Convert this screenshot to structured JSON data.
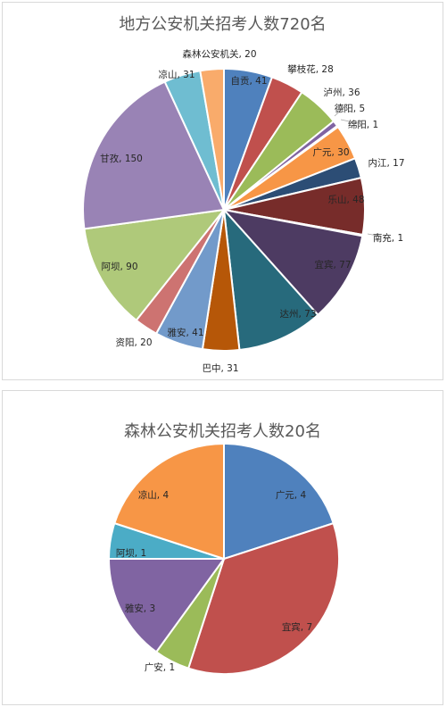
{
  "charts": [
    {
      "type": "pie",
      "title": "地方公安机关招考人数720名",
      "slices": [
        {
          "label": "自贡",
          "value": 41,
          "color": "#4f81bd",
          "text": "自贡, 41"
        },
        {
          "label": "攀枝花",
          "value": 28,
          "color": "#c0504d",
          "text": "攀枝花, 28"
        },
        {
          "label": "泸州",
          "value": 36,
          "color": "#9bbb59",
          "text": "泸州, 36"
        },
        {
          "label": "德阳",
          "value": 5,
          "color": "#8064a2",
          "text": "德阳, 5"
        },
        {
          "label": "绵阳",
          "value": 1,
          "color": "#4bacc6",
          "text": "绵阳, 1"
        },
        {
          "label": "广元",
          "value": 30,
          "color": "#f79646",
          "text": "广元, 30"
        },
        {
          "label": "内江",
          "value": 17,
          "color": "#2c4d75",
          "text": "内江, 17"
        },
        {
          "label": "乐山",
          "value": 48,
          "color": "#772c2a",
          "text": "乐山, 48"
        },
        {
          "label": "南充",
          "value": 1,
          "color": "#5f7530",
          "text": "南充, 1"
        },
        {
          "label": "宜宾",
          "value": 77,
          "color": "#4d3b62",
          "text": "宜宾, 77"
        },
        {
          "label": "达州",
          "value": 73,
          "color": "#276a7c",
          "text": "达州, 73"
        },
        {
          "label": "巴中",
          "value": 31,
          "color": "#b65708",
          "text": "巴中, 31"
        },
        {
          "label": "雅安",
          "value": 41,
          "color": "#729aca",
          "text": "雅安, 41"
        },
        {
          "label": "资阳",
          "value": 20,
          "color": "#cd7371",
          "text": "资阳, 20"
        },
        {
          "label": "阿坝",
          "value": 90,
          "color": "#afc97a",
          "text": "阿坝, 90"
        },
        {
          "label": "甘孜",
          "value": 150,
          "color": "#9983b5",
          "text": "甘孜, 150"
        },
        {
          "label": "凉山",
          "value": 31,
          "color": "#6fbdd1",
          "text": "凉山, 31"
        },
        {
          "label": "森林公安机关",
          "value": 20,
          "color": "#f9ab6b",
          "text": "森林公安机关, 20"
        }
      ]
    },
    {
      "type": "pie",
      "title": "森林公安机关招考人数20名",
      "slices": [
        {
          "label": "广元",
          "value": 4,
          "color": "#4f81bd",
          "text": "广元, 4"
        },
        {
          "label": "宜宾",
          "value": 7,
          "color": "#c0504d",
          "text": "宜宾, 7"
        },
        {
          "label": "广安",
          "value": 1,
          "color": "#9bbb59",
          "text": "广安, 1"
        },
        {
          "label": "雅安",
          "value": 3,
          "color": "#8064a2",
          "text": "雅安, 3"
        },
        {
          "label": "阿坝",
          "value": 1,
          "color": "#4bacc6",
          "text": "阿坝, 1"
        },
        {
          "label": "凉山",
          "value": 4,
          "color": "#f79646",
          "text": "凉山, 4"
        }
      ]
    }
  ]
}
